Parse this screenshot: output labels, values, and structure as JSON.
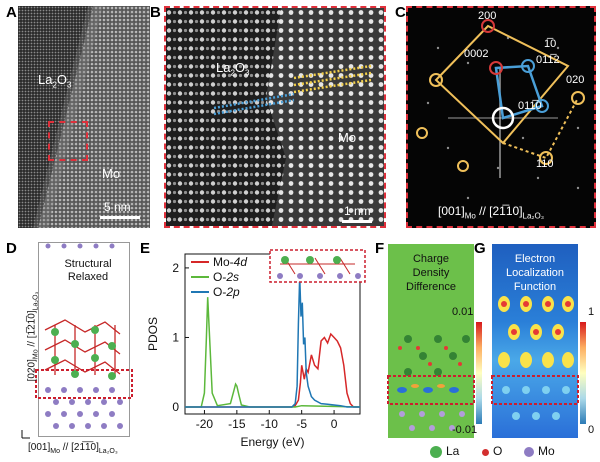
{
  "panels": {
    "a": {
      "letter": "A",
      "top_label_main": "La",
      "top_label_sub1": "2",
      "top_label_mid": "O",
      "top_label_sub2": "3",
      "bottom_label": "Mo",
      "scale": "5 nm"
    },
    "b": {
      "letter": "B",
      "top_label_main": "La",
      "top_label_sub1": "2",
      "top_label_mid": "O",
      "top_label_sub2": "3",
      "bottom_label": "Mo",
      "scale": "1 nm"
    },
    "c": {
      "letter": "C",
      "spots": [
        "200",
        "0002",
        "1̅0",
        "011̅2",
        "020",
        "011̅0",
        "110"
      ],
      "caption_a": "[001]",
      "caption_a_sub": "Mo",
      "caption_sep": " // [2",
      "caption_b": "1̅10]",
      "caption_b_sub": "La₂O₃"
    },
    "d": {
      "letter": "D",
      "title_line1": "Structural",
      "title_line2": "Relaxed",
      "y_axis": "[020]",
      "y_axis_sub": "Mo",
      "y_axis_rest": " // [1̅21̅0]",
      "y_axis_sub2": "La₂O₃",
      "x_axis": "[001]",
      "x_axis_sub": "Mo",
      "x_axis_rest": " // [21̅1̅0]",
      "x_axis_sub2": "La₂O₃"
    },
    "e": {
      "letter": "E"
    },
    "f": {
      "letter": "F",
      "title_line1": "Charge",
      "title_line2": "Density",
      "title_line3": "Difference",
      "cb_max": "0.01",
      "cb_min": "-0.01"
    },
    "g": {
      "letter": "G",
      "title_line1": "Electron",
      "title_line2": "Localization",
      "title_line3": "Function",
      "cb_max": "1",
      "cb_min": "0"
    }
  },
  "legend": {
    "la": "La",
    "o": "O",
    "mo": "Mo"
  },
  "colors": {
    "mo4d": "#d62728",
    "o2s": "#5cb83b",
    "o2p": "#1f77b4",
    "highlight": "#cc1f2e",
    "la": "#4caf50",
    "mo": "#8e7cc3",
    "o_atom": "#d32f2f"
  },
  "chart_data": {
    "type": "line",
    "title": "",
    "xlabel": "Energy (eV)",
    "ylabel": "PDOS",
    "xlim": [
      -23,
      4
    ],
    "ylim": [
      -0.1,
      2.2
    ],
    "xticks": [
      -20,
      -15,
      -10,
      -5,
      0
    ],
    "yticks": [
      0,
      1,
      2
    ],
    "series": [
      {
        "name": "Mo-4d",
        "color": "#d62728",
        "x": [
          -23,
          -6.5,
          -6,
          -5.5,
          -5.2,
          -5,
          -4.6,
          -4.3,
          -4,
          -3.5,
          -3,
          -2.5,
          -2,
          -1.5,
          -1,
          -0.5,
          0,
          0.5,
          1,
          1.5,
          2,
          2.5,
          3,
          4
        ],
        "y": [
          0,
          0,
          0.02,
          0.1,
          0.35,
          0.6,
          0.4,
          0.55,
          0.5,
          0.75,
          0.6,
          0.55,
          0.95,
          1.0,
          0.92,
          1.05,
          1.0,
          0.95,
          0.85,
          0.6,
          0.2,
          0.05,
          0,
          0
        ]
      },
      {
        "name": "O-2s",
        "color": "#5cb83b",
        "x": [
          -23,
          -20.5,
          -20,
          -19.7,
          -19.5,
          -19.2,
          -18.8,
          -18,
          -16,
          -15.5,
          -15.2,
          -15,
          -14.7,
          -14.3,
          -13,
          -10,
          -6,
          -5,
          4
        ],
        "y": [
          0,
          0,
          0.2,
          1.0,
          1.58,
          1.0,
          0.2,
          0.02,
          0.05,
          0.22,
          0.33,
          0.3,
          0.18,
          0.03,
          0,
          0,
          0,
          0.02,
          0
        ]
      },
      {
        "name": "O-2p",
        "color": "#1f77b4",
        "x": [
          -23,
          -6.5,
          -6,
          -5.7,
          -5.5,
          -5.3,
          -5.1,
          -4.9,
          -4.7,
          -4.5,
          -4.3,
          -4,
          -3.5,
          -3,
          -2,
          -1,
          0,
          1,
          2,
          4
        ],
        "y": [
          0,
          0,
          0.05,
          0.3,
          1.2,
          1.88,
          1.3,
          1.5,
          0.9,
          1.0,
          0.5,
          0.3,
          0.15,
          0.1,
          0.05,
          0.04,
          0.03,
          0.02,
          0,
          0
        ]
      }
    ]
  }
}
